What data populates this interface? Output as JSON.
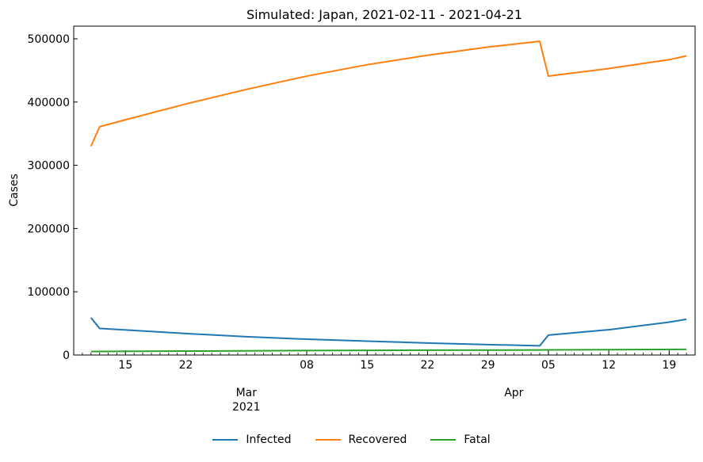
{
  "chart_data": {
    "type": "line",
    "title": "Simulated: Japan,  2021-02-11 -  2021-04-21",
    "ylabel": "Cases",
    "xlabel": "",
    "xlim": [
      "2021-02-09",
      "2021-04-22"
    ],
    "ylim": [
      0,
      520000
    ],
    "yticks": [
      0,
      100000,
      200000,
      300000,
      400000,
      500000
    ],
    "xticks_major": [
      {
        "date": "2021-02-15",
        "label": "15"
      },
      {
        "date": "2021-02-22",
        "label": "22"
      },
      {
        "date": "2021-03-08",
        "label": "08"
      },
      {
        "date": "2021-03-15",
        "label": "15"
      },
      {
        "date": "2021-03-22",
        "label": "22"
      },
      {
        "date": "2021-03-29",
        "label": "29"
      },
      {
        "date": "2021-04-05",
        "label": "05"
      },
      {
        "date": "2021-04-12",
        "label": "12"
      },
      {
        "date": "2021-04-19",
        "label": "19"
      }
    ],
    "month_labels": [
      {
        "date": "2021-03-01",
        "label": "Mar",
        "sub": "2021"
      },
      {
        "date": "2021-04-01",
        "label": "Apr",
        "sub": ""
      }
    ],
    "grid": false,
    "legend_position": "bottom-center",
    "series": [
      {
        "name": "Infected",
        "color": "#1f77b4",
        "points": [
          [
            "2021-02-11",
            59000
          ],
          [
            "2021-02-12",
            42000
          ],
          [
            "2021-02-22",
            34000
          ],
          [
            "2021-03-01",
            29000
          ],
          [
            "2021-03-08",
            25000
          ],
          [
            "2021-03-15",
            22000
          ],
          [
            "2021-03-22",
            19000
          ],
          [
            "2021-03-29",
            16500
          ],
          [
            "2021-04-04",
            14500
          ],
          [
            "2021-04-05",
            31500
          ],
          [
            "2021-04-12",
            40000
          ],
          [
            "2021-04-19",
            52000
          ],
          [
            "2021-04-21",
            56500
          ]
        ]
      },
      {
        "name": "Recovered",
        "color": "#ff7f0e",
        "points": [
          [
            "2021-02-11",
            330000
          ],
          [
            "2021-02-12",
            361000
          ],
          [
            "2021-02-15",
            372000
          ],
          [
            "2021-02-22",
            397000
          ],
          [
            "2021-03-01",
            420000
          ],
          [
            "2021-03-08",
            441000
          ],
          [
            "2021-03-15",
            459000
          ],
          [
            "2021-03-22",
            474000
          ],
          [
            "2021-03-29",
            487000
          ],
          [
            "2021-04-04",
            496000
          ],
          [
            "2021-04-05",
            441000
          ],
          [
            "2021-04-12",
            453000
          ],
          [
            "2021-04-19",
            467000
          ],
          [
            "2021-04-21",
            473000
          ]
        ]
      },
      {
        "name": "Fatal",
        "color": "#2ca02c",
        "points": [
          [
            "2021-02-11",
            5500
          ],
          [
            "2021-02-22",
            6200
          ],
          [
            "2021-03-08",
            7000
          ],
          [
            "2021-03-22",
            7600
          ],
          [
            "2021-04-04",
            8000
          ],
          [
            "2021-04-05",
            8100
          ],
          [
            "2021-04-21",
            9000
          ]
        ]
      }
    ]
  }
}
